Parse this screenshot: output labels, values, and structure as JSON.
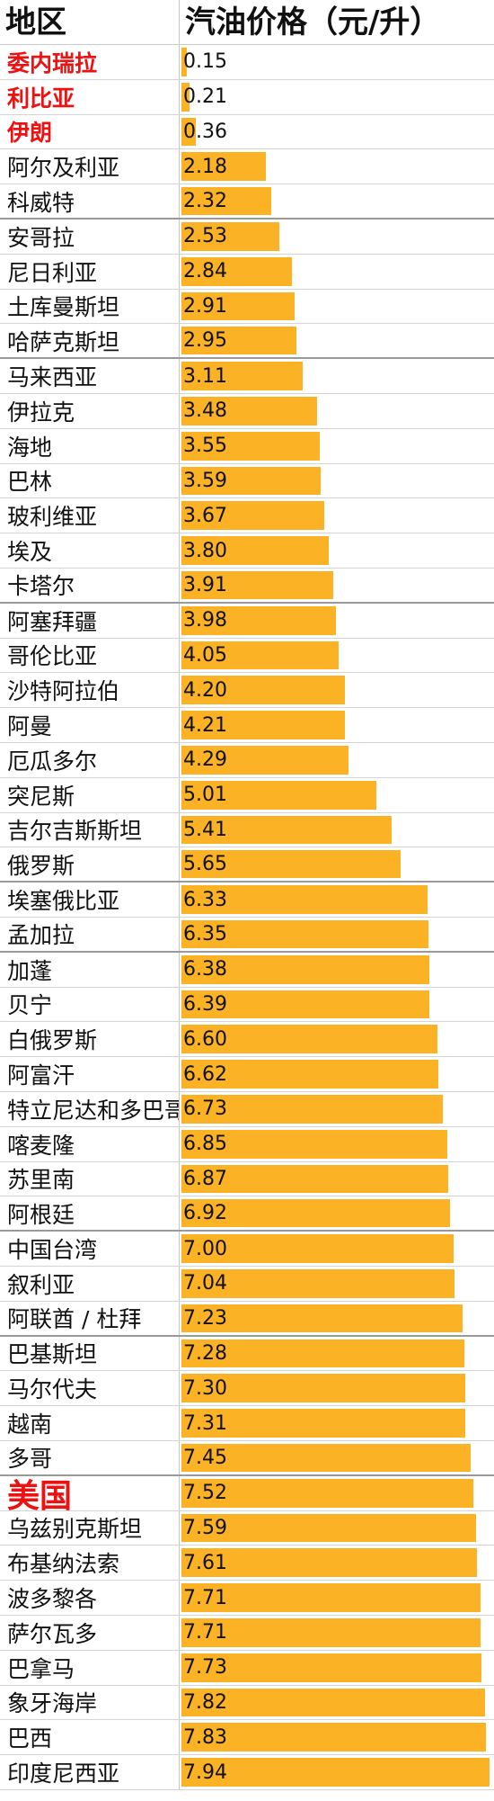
{
  "header": {
    "country": "地区",
    "price": "汽油价格（元/升）"
  },
  "chart_data": {
    "type": "bar",
    "orientation": "horizontal",
    "xlabel": "地区",
    "ylabel": "汽油价格（元/升）",
    "bar_color": "#fbb224",
    "highlight_color": "#ee1111",
    "ylim": [
      0,
      8
    ],
    "rows": [
      {
        "country": "委内瑞拉",
        "value": 0.15,
        "label": "0.15",
        "style": "hl"
      },
      {
        "country": "利比亚",
        "value": 0.21,
        "label": "0.21",
        "style": "hl"
      },
      {
        "country": "伊朗",
        "value": 0.36,
        "label": "0.36",
        "style": "hl"
      },
      {
        "country": "阿尔及利亚",
        "value": 2.18,
        "label": "2.18",
        "style": ""
      },
      {
        "country": "科威特",
        "value": 2.32,
        "label": "2.32",
        "style": ""
      },
      {
        "country": "安哥拉",
        "value": 2.53,
        "label": "2.53",
        "style": ""
      },
      {
        "country": "尼日利亚",
        "value": 2.84,
        "label": "2.84",
        "style": ""
      },
      {
        "country": "土库曼斯坦",
        "value": 2.91,
        "label": "2.91",
        "style": ""
      },
      {
        "country": "哈萨克斯坦",
        "value": 2.95,
        "label": "2.95",
        "style": ""
      },
      {
        "country": "马来西亚",
        "value": 3.11,
        "label": "3.11",
        "style": ""
      },
      {
        "country": "伊拉克",
        "value": 3.48,
        "label": "3.48",
        "style": ""
      },
      {
        "country": "海地",
        "value": 3.55,
        "label": "3.55",
        "style": ""
      },
      {
        "country": "巴林",
        "value": 3.59,
        "label": "3.59",
        "style": ""
      },
      {
        "country": "玻利维亚",
        "value": 3.67,
        "label": "3.67",
        "style": ""
      },
      {
        "country": "埃及",
        "value": 3.8,
        "label": "3.80",
        "style": ""
      },
      {
        "country": "卡塔尔",
        "value": 3.91,
        "label": "3.91",
        "style": ""
      },
      {
        "country": "阿塞拜疆",
        "value": 3.98,
        "label": "3.98",
        "style": ""
      },
      {
        "country": "哥伦比亚",
        "value": 4.05,
        "label": "4.05",
        "style": ""
      },
      {
        "country": "沙特阿拉伯",
        "value": 4.2,
        "label": "4.20",
        "style": ""
      },
      {
        "country": "阿曼",
        "value": 4.21,
        "label": "4.21",
        "style": ""
      },
      {
        "country": "厄瓜多尔",
        "value": 4.29,
        "label": "4.29",
        "style": ""
      },
      {
        "country": "突尼斯",
        "value": 5.01,
        "label": "5.01",
        "style": ""
      },
      {
        "country": "吉尔吉斯斯坦",
        "value": 5.41,
        "label": "5.41",
        "style": ""
      },
      {
        "country": "俄罗斯",
        "value": 5.65,
        "label": "5.65",
        "style": ""
      },
      {
        "country": "埃塞俄比亚",
        "value": 6.33,
        "label": "6.33",
        "style": ""
      },
      {
        "country": "孟加拉",
        "value": 6.35,
        "label": "6.35",
        "style": ""
      },
      {
        "country": "加蓬",
        "value": 6.38,
        "label": "6.38",
        "style": ""
      },
      {
        "country": "贝宁",
        "value": 6.39,
        "label": "6.39",
        "style": ""
      },
      {
        "country": "白俄罗斯",
        "value": 6.6,
        "label": "6.60",
        "style": ""
      },
      {
        "country": "阿富汗",
        "value": 6.62,
        "label": "6.62",
        "style": ""
      },
      {
        "country": "特立尼达和多巴哥",
        "value": 6.73,
        "label": "6.73",
        "style": ""
      },
      {
        "country": "喀麦隆",
        "value": 6.85,
        "label": "6.85",
        "style": ""
      },
      {
        "country": "苏里南",
        "value": 6.87,
        "label": "6.87",
        "style": ""
      },
      {
        "country": "阿根廷",
        "value": 6.92,
        "label": "6.92",
        "style": ""
      },
      {
        "country": "中国台湾",
        "value": 7.0,
        "label": "7.00",
        "style": ""
      },
      {
        "country": "叙利亚",
        "value": 7.04,
        "label": "7.04",
        "style": ""
      },
      {
        "country": "阿联酋 / 杜拜",
        "value": 7.23,
        "label": "7.23",
        "style": ""
      },
      {
        "country": "巴基斯坦",
        "value": 7.28,
        "label": "7.28",
        "style": ""
      },
      {
        "country": "马尔代夫",
        "value": 7.3,
        "label": "7.30",
        "style": ""
      },
      {
        "country": "越南",
        "value": 7.31,
        "label": "7.31",
        "style": ""
      },
      {
        "country": "多哥",
        "value": 7.45,
        "label": "7.45",
        "style": ""
      },
      {
        "country": "美国",
        "value": 7.52,
        "label": "7.52",
        "style": "big"
      },
      {
        "country": "乌兹别克斯坦",
        "value": 7.59,
        "label": "7.59",
        "style": ""
      },
      {
        "country": "布基纳法索",
        "value": 7.61,
        "label": "7.61",
        "style": ""
      },
      {
        "country": "波多黎各",
        "value": 7.71,
        "label": "7.71",
        "style": ""
      },
      {
        "country": "萨尔瓦多",
        "value": 7.71,
        "label": "7.71",
        "style": ""
      },
      {
        "country": "巴拿马",
        "value": 7.73,
        "label": "7.73",
        "style": ""
      },
      {
        "country": "象牙海岸",
        "value": 7.82,
        "label": "7.82",
        "style": ""
      },
      {
        "country": "巴西",
        "value": 7.83,
        "label": "7.83",
        "style": ""
      },
      {
        "country": "印度尼西亚",
        "value": 7.94,
        "label": "7.94",
        "style": ""
      }
    ]
  }
}
